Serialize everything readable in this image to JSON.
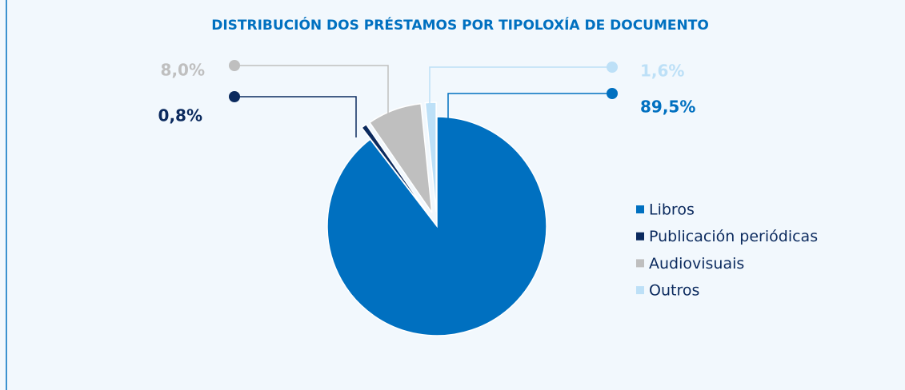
{
  "chart_data": {
    "type": "pie",
    "title": "DISTRIBUCIÓN DOS PRÉSTAMOS POR TIPOLOXÍA DE DOCUMENTO",
    "categories": [
      "Libros",
      "Publicación periódicas",
      "Audiovisuais",
      "Outros"
    ],
    "values": [
      89.5,
      0.8,
      8.0,
      1.6
    ],
    "value_labels": [
      "89,5%",
      "0,8%",
      "8,0%",
      "1,6%"
    ],
    "colors": [
      "#0070c0",
      "#0b2a5e",
      "#bfbfbf",
      "#bde0f7"
    ]
  }
}
